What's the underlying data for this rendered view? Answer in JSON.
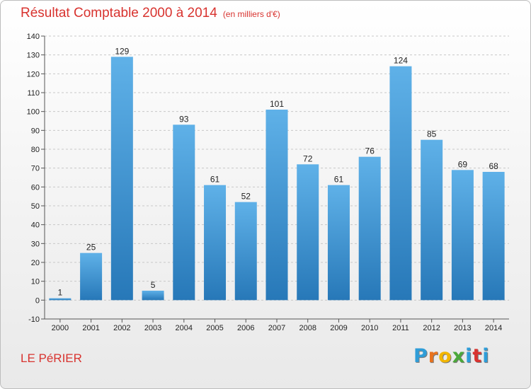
{
  "header": {
    "title": "Résultat Comptable 2000 à 2014",
    "unit": "(en milliers d'€)"
  },
  "footer": {
    "town": "LE PéRIER",
    "brand_letters": [
      "P",
      "r",
      "o",
      "x",
      "i",
      "t",
      "i"
    ],
    "brand_colors": [
      "#2f9dd8",
      "#e8721e",
      "#f2b600",
      "#4ba83a",
      "#2f9dd8",
      "#d8332f",
      "#2f9dd8"
    ]
  },
  "colors": {
    "bar_light": "#5fb1e8",
    "bar_dark": "#2778b8",
    "title": "#d8332f"
  },
  "chart_data": {
    "type": "bar",
    "title": "Résultat Comptable 2000 à 2014",
    "subtitle": "(en milliers d'€)",
    "categories": [
      "2000",
      "2001",
      "2002",
      "2003",
      "2004",
      "2005",
      "2006",
      "2007",
      "2008",
      "2009",
      "2010",
      "2011",
      "2012",
      "2013",
      "2014"
    ],
    "values": [
      1,
      25,
      129,
      5,
      93,
      61,
      52,
      101,
      72,
      61,
      76,
      124,
      85,
      69,
      68
    ],
    "ylim": [
      -10,
      140
    ],
    "yticks": [
      -10,
      0,
      10,
      20,
      30,
      40,
      50,
      60,
      70,
      80,
      90,
      100,
      110,
      120,
      130,
      140
    ],
    "grid": true,
    "legend": "none"
  }
}
